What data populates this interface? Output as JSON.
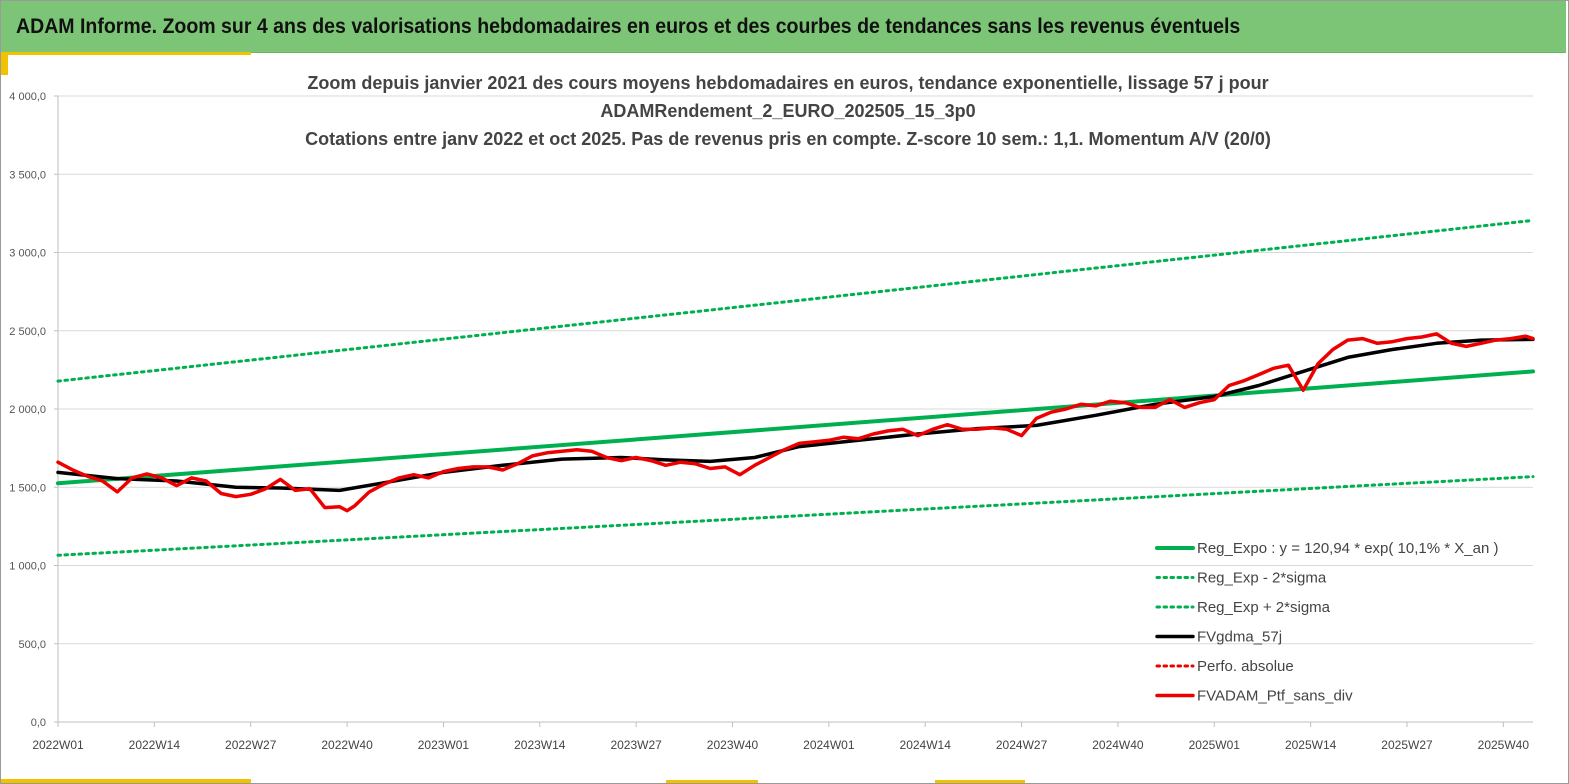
{
  "banner": {
    "title": "ADAM Informe. Zoom sur 4 ans des valorisations hebdomadaires en euros et des courbes de tendances sans les revenus éventuels"
  },
  "colors": {
    "banner": "#7cc576",
    "accent": "#f2c200",
    "green": "#00b050",
    "black": "#000000",
    "red": "#ee0000",
    "grid": "#d9d9d9"
  },
  "chart_data": {
    "type": "line",
    "title_lines": [
      "Zoom depuis janvier 2021 des cours moyens hebdomadaires  en euros, tendance exponentielle, lissage 57 j pour",
      "ADAMRendement_2_EURO_202505_15_3p0",
      "Cotations  entre janv 2022 et oct 2025. Pas de revenus pris en compte. Z-score 10 sem.: 1,1. Momentum A/V (20/0)"
    ],
    "ylim": [
      0,
      4000
    ],
    "y_ticks": [
      0,
      500,
      1000,
      1500,
      2000,
      2500,
      3000,
      3500,
      4000
    ],
    "y_tick_labels": [
      "0,0",
      "500,0",
      "1 000,0",
      "1 500,0",
      "2 000,0",
      "2 500,0",
      "3 000,0",
      "3 500,0",
      "4 000,0"
    ],
    "x_tick_labels": [
      "2022W01",
      "2022W14",
      "2022W27",
      "2022W40",
      "2023W01",
      "2023W14",
      "2023W27",
      "2023W40",
      "2024W01",
      "2024W14",
      "2024W27",
      "2024W40",
      "2025W01",
      "2025W14",
      "2025W27",
      "2025W40"
    ],
    "x_tick_index": [
      0,
      13,
      26,
      39,
      52,
      65,
      78,
      91,
      104,
      117,
      130,
      143,
      156,
      169,
      182,
      195
    ],
    "n_weeks": 200,
    "grid": "horizontal",
    "legend_position": "bottom-right",
    "series": [
      {
        "name": "Reg_Expo : y = 120,94 * exp( 10,1% *  X_an )",
        "style": "solid-green",
        "x": [
          0,
          199
        ],
        "y": [
          1525,
          2240
        ]
      },
      {
        "name": "Reg_Exp - 2*sigma",
        "style": "dotted-green",
        "x": [
          0,
          199
        ],
        "y": [
          1065,
          1568
        ]
      },
      {
        "name": "Reg_Exp + 2*sigma",
        "style": "dotted-green",
        "x": [
          0,
          199
        ],
        "y": [
          2178,
          3205
        ]
      },
      {
        "name": "FVgdma_57j",
        "style": "solid-black",
        "x": [
          0,
          8,
          16,
          24,
          30,
          38,
          46,
          52,
          60,
          68,
          76,
          82,
          88,
          94,
          100,
          108,
          116,
          124,
          132,
          140,
          148,
          156,
          162,
          168,
          174,
          180,
          186,
          192,
          199
        ],
        "y": [
          1595,
          1555,
          1540,
          1500,
          1495,
          1480,
          1545,
          1595,
          1640,
          1680,
          1690,
          1675,
          1665,
          1690,
          1760,
          1800,
          1840,
          1875,
          1895,
          1960,
          2030,
          2080,
          2150,
          2240,
          2330,
          2380,
          2420,
          2440,
          2445
        ]
      },
      {
        "name": "Perfo. absolue",
        "style": "dotted-red",
        "x": [],
        "y": []
      },
      {
        "name": "FVADAM_Ptf_sans_div",
        "style": "solid-red",
        "x": [
          0,
          2,
          4,
          6,
          8,
          10,
          12,
          14,
          16,
          18,
          20,
          22,
          24,
          26,
          28,
          30,
          32,
          34,
          36,
          38,
          39,
          40,
          42,
          44,
          46,
          48,
          50,
          52,
          54,
          56,
          58,
          60,
          62,
          64,
          66,
          68,
          70,
          72,
          74,
          76,
          78,
          80,
          82,
          84,
          86,
          88,
          90,
          92,
          94,
          96,
          98,
          100,
          102,
          104,
          106,
          108,
          110,
          112,
          114,
          116,
          118,
          120,
          122,
          124,
          126,
          128,
          130,
          132,
          134,
          136,
          138,
          140,
          142,
          144,
          146,
          148,
          150,
          152,
          154,
          156,
          158,
          160,
          162,
          164,
          166,
          168,
          170,
          172,
          174,
          176,
          178,
          180,
          182,
          184,
          186,
          188,
          190,
          192,
          194,
          196,
          198,
          199
        ],
        "y": [
          1660,
          1610,
          1570,
          1540,
          1470,
          1560,
          1585,
          1560,
          1510,
          1560,
          1540,
          1460,
          1440,
          1455,
          1490,
          1550,
          1480,
          1490,
          1370,
          1375,
          1350,
          1380,
          1470,
          1520,
          1560,
          1580,
          1560,
          1600,
          1620,
          1630,
          1630,
          1610,
          1650,
          1700,
          1720,
          1730,
          1740,
          1730,
          1690,
          1670,
          1690,
          1670,
          1640,
          1660,
          1650,
          1620,
          1630,
          1580,
          1640,
          1690,
          1740,
          1780,
          1790,
          1800,
          1820,
          1810,
          1840,
          1860,
          1870,
          1830,
          1870,
          1900,
          1870,
          1870,
          1880,
          1870,
          1830,
          1940,
          1980,
          2000,
          2030,
          2020,
          2050,
          2040,
          2010,
          2010,
          2060,
          2010,
          2040,
          2060,
          2150,
          2180,
          2220,
          2260,
          2280,
          2120,
          2290,
          2380,
          2440,
          2450,
          2420,
          2430,
          2450,
          2460,
          2480,
          2420,
          2400,
          2420,
          2440,
          2450,
          2465,
          2450
        ]
      }
    ]
  }
}
